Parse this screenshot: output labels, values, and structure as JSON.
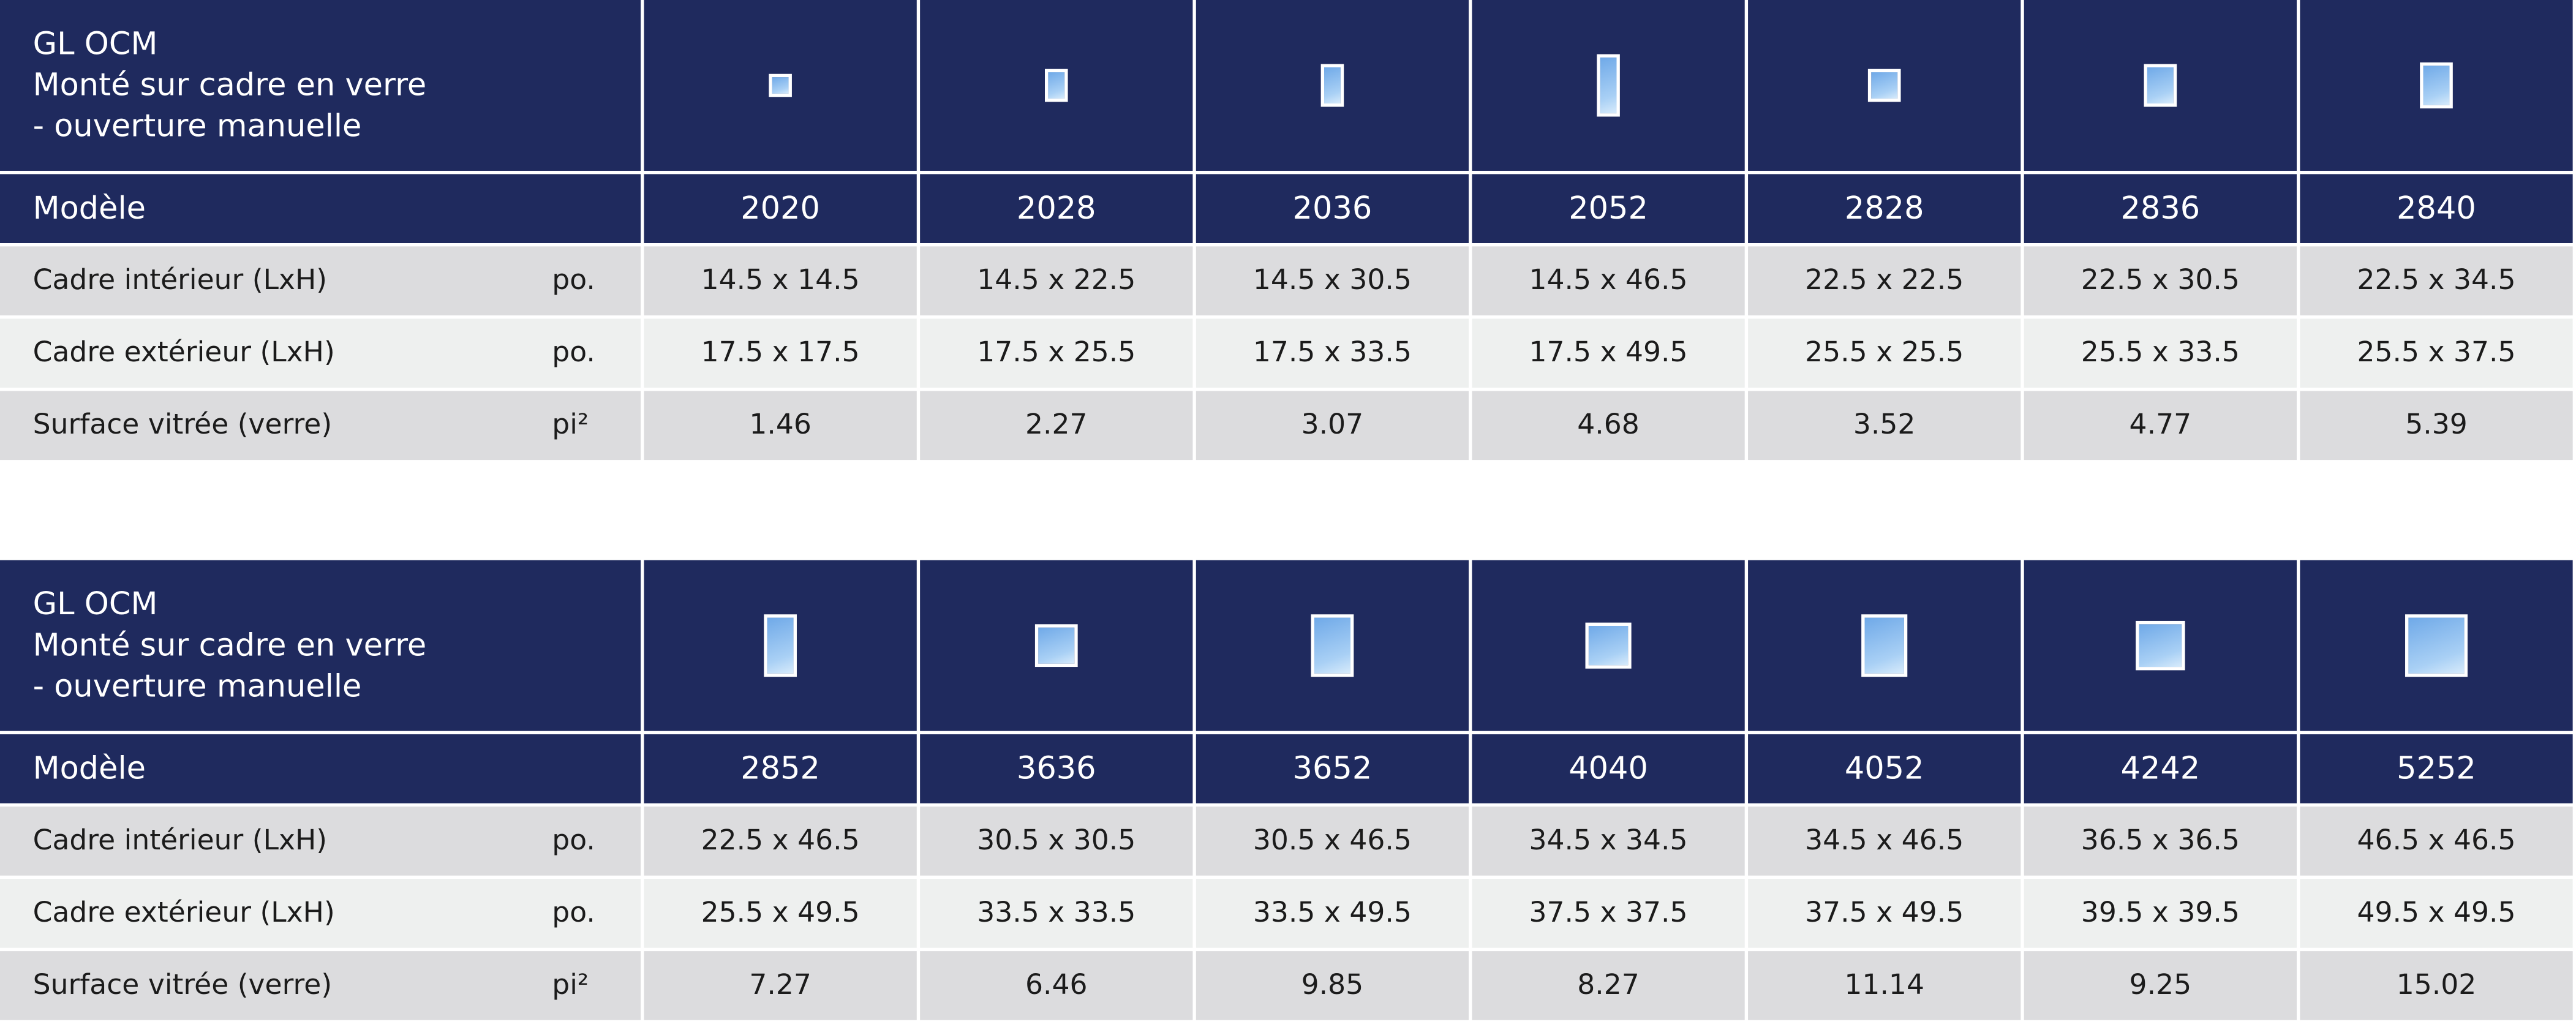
{
  "tables": [
    {
      "title": [
        "GL OCM",
        "Monté sur cadre en verre",
        "- ouverture manuelle"
      ],
      "model_label": "Modèle",
      "models": [
        "2020",
        "2028",
        "2036",
        "2052",
        "2828",
        "2836",
        "2840"
      ],
      "rows": [
        {
          "label": "Cadre intérieur (LxH)",
          "unit": "po.",
          "values": [
            "14.5 x 14.5",
            "14.5 x 22.5",
            "14.5 x 30.5",
            "14.5 x 46.5",
            "22.5 x 22.5",
            "22.5 x 30.5",
            "22.5 x 34.5"
          ]
        },
        {
          "label": "Cadre extérieur (LxH)",
          "unit": "po.",
          "values": [
            "17.5 x 17.5",
            "17.5 x 25.5",
            "17.5 x 33.5",
            "17.5 x 49.5",
            "25.5 x 25.5",
            "25.5 x 33.5",
            "25.5 x 37.5"
          ]
        },
        {
          "label": "Surface vitrée (verre)",
          "unit": "pi²",
          "values": [
            "1.46",
            "2.27",
            "3.07",
            "4.68",
            "3.52",
            "4.77",
            "5.39"
          ]
        }
      ]
    },
    {
      "title": [
        "GL OCM",
        "Monté sur cadre en verre",
        "- ouverture manuelle"
      ],
      "model_label": "Modèle",
      "models": [
        "2852",
        "3636",
        "3652",
        "4040",
        "4052",
        "4242",
        "5252"
      ],
      "rows": [
        {
          "label": "Cadre intérieur (LxH)",
          "unit": "po.",
          "values": [
            "22.5 x 46.5",
            "30.5 x 30.5",
            "30.5 x 46.5",
            "34.5 x 34.5",
            "34.5 x 46.5",
            "36.5 x 36.5",
            "46.5 x 46.5"
          ]
        },
        {
          "label": "Cadre extérieur (LxH)",
          "unit": "po.",
          "values": [
            "25.5 x 49.5",
            "33.5 x 33.5",
            "33.5 x 49.5",
            "37.5 x 37.5",
            "37.5 x 49.5",
            "39.5 x 39.5",
            "49.5 x 49.5"
          ]
        },
        {
          "label": "Surface vitrée (verre)",
          "unit": "pi²",
          "values": [
            "7.27",
            "6.46",
            "9.85",
            "8.27",
            "11.14",
            "9.25",
            "15.02"
          ]
        }
      ]
    }
  ]
}
